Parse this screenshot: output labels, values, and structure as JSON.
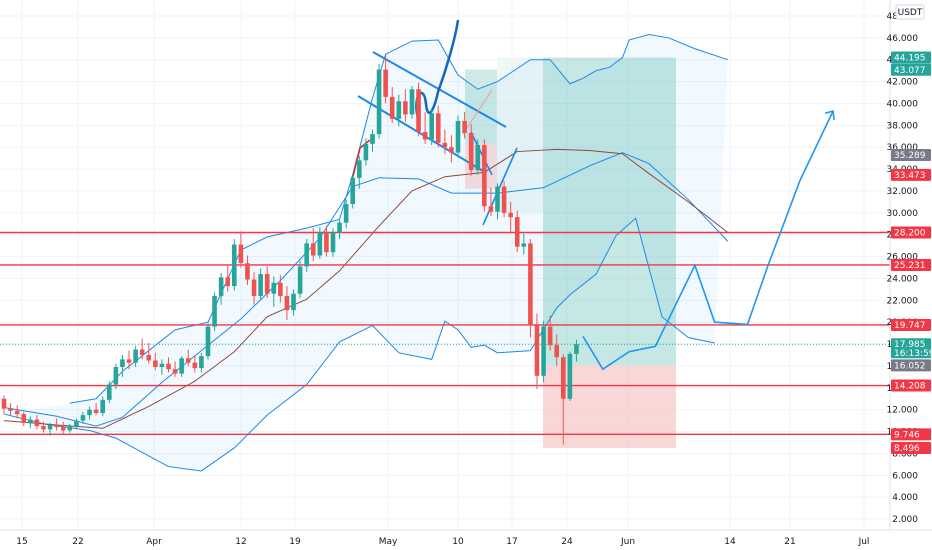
{
  "chart_data": {
    "type": "candlestick",
    "currency": "USDT",
    "x_ticks": [
      "15",
      "22",
      "Apr",
      "12",
      "19",
      "May",
      "10",
      "17",
      "24",
      "Jun",
      "14",
      "21",
      "Jul"
    ],
    "y_ticks": [
      2,
      4,
      6,
      8,
      10,
      12,
      14,
      16,
      18,
      20,
      22,
      24,
      26,
      28,
      30,
      32,
      34,
      36,
      38,
      40,
      42,
      44,
      46,
      48
    ],
    "ylim": [
      1.0,
      49.0
    ],
    "candles": [
      {
        "o": 13.0,
        "h": 13.3,
        "l": 11.6,
        "c": 12.1
      },
      {
        "o": 12.1,
        "h": 12.6,
        "l": 11.5,
        "c": 11.9
      },
      {
        "o": 11.9,
        "h": 12.4,
        "l": 11.2,
        "c": 11.6
      },
      {
        "o": 11.6,
        "h": 11.8,
        "l": 10.5,
        "c": 10.8
      },
      {
        "o": 10.8,
        "h": 11.4,
        "l": 10.3,
        "c": 11.1
      },
      {
        "o": 11.1,
        "h": 11.5,
        "l": 10.2,
        "c": 10.5
      },
      {
        "o": 10.5,
        "h": 10.9,
        "l": 9.9,
        "c": 10.2
      },
      {
        "o": 10.2,
        "h": 10.8,
        "l": 9.6,
        "c": 10.6
      },
      {
        "o": 10.6,
        "h": 11.2,
        "l": 10.1,
        "c": 10.4
      },
      {
        "o": 10.4,
        "h": 10.9,
        "l": 9.8,
        "c": 10.1
      },
      {
        "o": 10.1,
        "h": 10.7,
        "l": 9.9,
        "c": 10.5
      },
      {
        "o": 10.5,
        "h": 11.2,
        "l": 10.2,
        "c": 11.0
      },
      {
        "o": 11.0,
        "h": 11.8,
        "l": 10.7,
        "c": 11.5
      },
      {
        "o": 11.5,
        "h": 12.3,
        "l": 11.1,
        "c": 12.0
      },
      {
        "o": 12.0,
        "h": 12.6,
        "l": 11.5,
        "c": 11.7
      },
      {
        "o": 11.7,
        "h": 13.2,
        "l": 11.4,
        "c": 12.9
      },
      {
        "o": 12.9,
        "h": 14.6,
        "l": 12.6,
        "c": 14.3
      },
      {
        "o": 14.3,
        "h": 16.2,
        "l": 13.9,
        "c": 15.9
      },
      {
        "o": 15.9,
        "h": 17.0,
        "l": 15.0,
        "c": 16.6
      },
      {
        "o": 16.6,
        "h": 17.4,
        "l": 15.7,
        "c": 16.3
      },
      {
        "o": 16.3,
        "h": 17.8,
        "l": 15.9,
        "c": 17.5
      },
      {
        "o": 17.5,
        "h": 18.5,
        "l": 16.6,
        "c": 17.0
      },
      {
        "o": 17.0,
        "h": 18.1,
        "l": 16.2,
        "c": 16.5
      },
      {
        "o": 16.5,
        "h": 17.2,
        "l": 15.6,
        "c": 15.9
      },
      {
        "o": 15.9,
        "h": 16.6,
        "l": 15.2,
        "c": 16.2
      },
      {
        "o": 16.2,
        "h": 16.8,
        "l": 15.4,
        "c": 15.7
      },
      {
        "o": 15.7,
        "h": 16.4,
        "l": 15.0,
        "c": 15.3
      },
      {
        "o": 15.3,
        "h": 16.9,
        "l": 15.0,
        "c": 16.7
      },
      {
        "o": 16.7,
        "h": 17.5,
        "l": 16.0,
        "c": 16.3
      },
      {
        "o": 16.3,
        "h": 17.0,
        "l": 15.4,
        "c": 15.8
      },
      {
        "o": 15.8,
        "h": 17.2,
        "l": 15.4,
        "c": 16.9
      },
      {
        "o": 16.9,
        "h": 19.9,
        "l": 16.6,
        "c": 19.6
      },
      {
        "o": 19.6,
        "h": 22.7,
        "l": 19.2,
        "c": 22.4
      },
      {
        "o": 22.4,
        "h": 24.5,
        "l": 21.6,
        "c": 24.1
      },
      {
        "o": 24.1,
        "h": 25.2,
        "l": 22.8,
        "c": 23.3
      },
      {
        "o": 23.3,
        "h": 27.6,
        "l": 22.9,
        "c": 27.1
      },
      {
        "o": 27.1,
        "h": 28.3,
        "l": 25.0,
        "c": 25.4
      },
      {
        "o": 25.4,
        "h": 26.1,
        "l": 23.4,
        "c": 23.9
      },
      {
        "o": 23.9,
        "h": 24.6,
        "l": 21.6,
        "c": 22.4
      },
      {
        "o": 22.4,
        "h": 24.9,
        "l": 22.0,
        "c": 24.4
      },
      {
        "o": 24.4,
        "h": 25.1,
        "l": 22.2,
        "c": 22.6
      },
      {
        "o": 22.6,
        "h": 24.2,
        "l": 21.4,
        "c": 23.6
      },
      {
        "o": 23.6,
        "h": 24.3,
        "l": 21.8,
        "c": 22.4
      },
      {
        "o": 22.4,
        "h": 23.3,
        "l": 20.2,
        "c": 21.1
      },
      {
        "o": 21.1,
        "h": 23.0,
        "l": 20.6,
        "c": 22.6
      },
      {
        "o": 22.6,
        "h": 25.6,
        "l": 22.2,
        "c": 25.1
      },
      {
        "o": 25.1,
        "h": 27.6,
        "l": 24.6,
        "c": 27.2
      },
      {
        "o": 27.2,
        "h": 28.6,
        "l": 25.6,
        "c": 26.1
      },
      {
        "o": 26.1,
        "h": 28.7,
        "l": 25.8,
        "c": 28.2
      },
      {
        "o": 28.2,
        "h": 28.8,
        "l": 26.0,
        "c": 26.4
      },
      {
        "o": 26.4,
        "h": 28.6,
        "l": 26.0,
        "c": 28.2
      },
      {
        "o": 28.2,
        "h": 29.4,
        "l": 27.6,
        "c": 29.1
      },
      {
        "o": 29.1,
        "h": 31.2,
        "l": 28.6,
        "c": 30.8
      },
      {
        "o": 30.8,
        "h": 33.5,
        "l": 30.4,
        "c": 33.2
      },
      {
        "o": 33.2,
        "h": 35.2,
        "l": 32.2,
        "c": 34.8
      },
      {
        "o": 34.8,
        "h": 36.8,
        "l": 34.3,
        "c": 36.3
      },
      {
        "o": 36.3,
        "h": 37.6,
        "l": 35.6,
        "c": 37.2
      },
      {
        "o": 37.2,
        "h": 43.6,
        "l": 36.8,
        "c": 43.1
      },
      {
        "o": 43.1,
        "h": 44.4,
        "l": 40.0,
        "c": 40.6
      },
      {
        "o": 40.6,
        "h": 41.5,
        "l": 38.2,
        "c": 38.6
      },
      {
        "o": 38.6,
        "h": 40.8,
        "l": 37.9,
        "c": 40.2
      },
      {
        "o": 40.2,
        "h": 41.3,
        "l": 38.3,
        "c": 39.0
      },
      {
        "o": 39.0,
        "h": 41.6,
        "l": 38.6,
        "c": 41.3
      },
      {
        "o": 41.3,
        "h": 41.9,
        "l": 37.0,
        "c": 37.4
      },
      {
        "o": 37.4,
        "h": 39.2,
        "l": 36.3,
        "c": 36.7
      },
      {
        "o": 36.7,
        "h": 39.6,
        "l": 36.2,
        "c": 39.1
      },
      {
        "o": 39.1,
        "h": 39.8,
        "l": 36.0,
        "c": 36.4
      },
      {
        "o": 36.4,
        "h": 37.6,
        "l": 35.4,
        "c": 36.0
      },
      {
        "o": 36.0,
        "h": 37.1,
        "l": 34.6,
        "c": 35.5
      },
      {
        "o": 35.5,
        "h": 38.9,
        "l": 35.1,
        "c": 38.4
      },
      {
        "o": 38.4,
        "h": 39.2,
        "l": 36.8,
        "c": 37.3
      },
      {
        "o": 37.3,
        "h": 38.1,
        "l": 33.4,
        "c": 33.9
      },
      {
        "o": 33.9,
        "h": 36.7,
        "l": 33.5,
        "c": 36.2
      },
      {
        "o": 36.2,
        "h": 36.7,
        "l": 30.1,
        "c": 30.6
      },
      {
        "o": 30.6,
        "h": 32.3,
        "l": 29.7,
        "c": 30.1
      },
      {
        "o": 30.1,
        "h": 32.7,
        "l": 29.4,
        "c": 32.4
      },
      {
        "o": 32.4,
        "h": 32.9,
        "l": 29.6,
        "c": 30.0
      },
      {
        "o": 30.0,
        "h": 31.0,
        "l": 28.2,
        "c": 29.6
      },
      {
        "o": 29.6,
        "h": 30.2,
        "l": 26.4,
        "c": 26.9
      },
      {
        "o": 26.9,
        "h": 28.1,
        "l": 26.2,
        "c": 27.2
      },
      {
        "o": 27.2,
        "h": 27.6,
        "l": 18.6,
        "c": 19.7
      },
      {
        "o": 19.7,
        "h": 20.8,
        "l": 13.9,
        "c": 15.1
      },
      {
        "o": 15.1,
        "h": 20.1,
        "l": 14.5,
        "c": 19.6
      },
      {
        "o": 19.6,
        "h": 20.6,
        "l": 17.4,
        "c": 17.9
      },
      {
        "o": 17.9,
        "h": 18.9,
        "l": 16.0,
        "c": 16.8
      },
      {
        "o": 16.8,
        "h": 17.1,
        "l": 8.8,
        "c": 13.0
      },
      {
        "o": 13.0,
        "h": 17.3,
        "l": 12.8,
        "c": 17.1
      },
      {
        "o": 17.1,
        "h": 18.4,
        "l": 16.4,
        "c": 17.985
      }
    ],
    "bollinger_upper": [
      [
        10,
        12.6
      ],
      [
        14,
        13.0
      ],
      [
        18,
        15.5
      ],
      [
        26,
        19.3
      ],
      [
        31,
        20.0
      ],
      [
        36,
        26.6
      ],
      [
        40,
        27.8
      ],
      [
        46,
        28.6
      ],
      [
        51,
        29.4
      ],
      [
        53,
        33.5
      ],
      [
        56,
        40.5
      ],
      [
        58,
        44.5
      ],
      [
        62,
        45.7
      ],
      [
        66,
        45.8
      ],
      [
        69,
        42.6
      ],
      [
        72,
        41.3
      ],
      [
        75,
        42.0
      ],
      [
        80,
        44.0
      ],
      [
        83,
        44.0
      ],
      [
        86,
        41.8
      ],
      [
        88,
        42.3
      ],
      [
        90,
        43.0
      ],
      [
        92,
        43.3
      ],
      [
        94,
        44.2
      ],
      [
        95,
        45.8
      ],
      [
        98,
        46.3
      ],
      [
        101,
        46.0
      ],
      [
        105,
        45.0
      ],
      [
        110,
        44.0
      ]
    ],
    "bollinger_lower": [
      [
        0,
        11.6
      ],
      [
        6,
        10.7
      ],
      [
        13,
        10.1
      ],
      [
        17,
        9.4
      ],
      [
        25,
        6.8
      ],
      [
        30,
        6.4
      ],
      [
        35,
        8.5
      ],
      [
        40,
        11.5
      ],
      [
        46,
        14.3
      ],
      [
        51,
        18.2
      ],
      [
        56,
        19.7
      ],
      [
        60,
        17.2
      ],
      [
        65,
        16.6
      ],
      [
        67,
        20.1
      ],
      [
        69,
        19.3
      ],
      [
        71,
        17.7
      ],
      [
        73,
        17.9
      ],
      [
        75,
        17.2
      ],
      [
        80,
        17.4
      ],
      [
        84,
        21.3
      ],
      [
        86,
        22.5
      ],
      [
        90,
        24.4
      ],
      [
        93,
        27.9
      ],
      [
        96,
        29.5
      ],
      [
        98,
        25.0
      ],
      [
        100,
        20.5
      ],
      [
        104,
        18.6
      ],
      [
        108,
        18.1
      ]
    ],
    "bollinger_basis": [
      [
        0,
        12.2
      ],
      [
        8,
        11.4
      ],
      [
        14,
        10.5
      ],
      [
        18,
        11.3
      ],
      [
        24,
        14.5
      ],
      [
        30,
        17.4
      ],
      [
        36,
        20.3
      ],
      [
        42,
        23.8
      ],
      [
        48,
        27.7
      ],
      [
        53,
        32.4
      ],
      [
        57,
        33.2
      ],
      [
        63,
        33.1
      ],
      [
        68,
        31.8
      ],
      [
        75,
        31.8
      ],
      [
        82,
        32.3
      ],
      [
        89,
        34.3
      ],
      [
        94,
        35.5
      ],
      [
        98,
        34.5
      ],
      [
        104,
        31.2
      ],
      [
        110,
        27.4
      ]
    ],
    "ma_red": [
      [
        0,
        11.0
      ],
      [
        8,
        10.6
      ],
      [
        15,
        10.3
      ],
      [
        22,
        12.3
      ],
      [
        29,
        14.6
      ],
      [
        35,
        17.3
      ],
      [
        40,
        20.5
      ],
      [
        46,
        22.1
      ],
      [
        51,
        24.7
      ],
      [
        57,
        28.8
      ],
      [
        62,
        32.0
      ],
      [
        67,
        33.3
      ],
      [
        73,
        33.7
      ],
      [
        78,
        35.6
      ],
      [
        84,
        35.8
      ],
      [
        89,
        35.7
      ],
      [
        94,
        35.4
      ],
      [
        98,
        33.6
      ],
      [
        104,
        31.0
      ],
      [
        110,
        28.2
      ]
    ],
    "horizontal_levels": [
      28.2,
      25.231,
      19.747,
      14.208,
      9.746
    ],
    "position": {
      "entry": 16.052,
      "target": 44.195,
      "stop": 8.496
    },
    "projection_path": [
      [
        88,
        18.7
      ],
      [
        91,
        15.7
      ],
      [
        95,
        17.3
      ],
      [
        99,
        17.8
      ],
      [
        105,
        25.2
      ],
      [
        108,
        20.0
      ],
      [
        113,
        19.8
      ],
      [
        116,
        25.0
      ],
      [
        121,
        33.0
      ],
      [
        126,
        39.3
      ]
    ],
    "price_labels": [
      {
        "text": "44.195",
        "value": 44.195,
        "color": "#26a69a"
      },
      {
        "text": "43.077",
        "value": 43.077,
        "color": "#26a69a"
      },
      {
        "text": "35.289",
        "value": 35.289,
        "color": "#787b86"
      },
      {
        "text": "33.473",
        "value": 33.473,
        "color": "#f23645"
      },
      {
        "text": "28.200",
        "value": 28.2,
        "color": "#f23645"
      },
      {
        "text": "25.231",
        "value": 25.231,
        "color": "#f23645"
      },
      {
        "text": "19.747",
        "value": 19.747,
        "color": "#f23645"
      },
      {
        "text": "17.985",
        "value": 17.985,
        "color": "#26a69a",
        "sub": "16:13:59"
      },
      {
        "text": "16.052",
        "value": 16.052,
        "color": "#787b86"
      },
      {
        "text": "14.208",
        "value": 14.208,
        "color": "#f23645"
      },
      {
        "text": "9.746",
        "value": 9.746,
        "color": "#f23645"
      },
      {
        "text": "8.496",
        "value": 8.496,
        "color": "#f23645"
      }
    ],
    "colors": {
      "up": "#26a69a",
      "down": "#ef5350",
      "levels": "#f23645",
      "bands": "#1e88e5",
      "projection": "#2196f3",
      "profit_zone": "#7fccc4",
      "loss_zone": "#f7bcbc",
      "ma": "#8d4b3e"
    }
  }
}
